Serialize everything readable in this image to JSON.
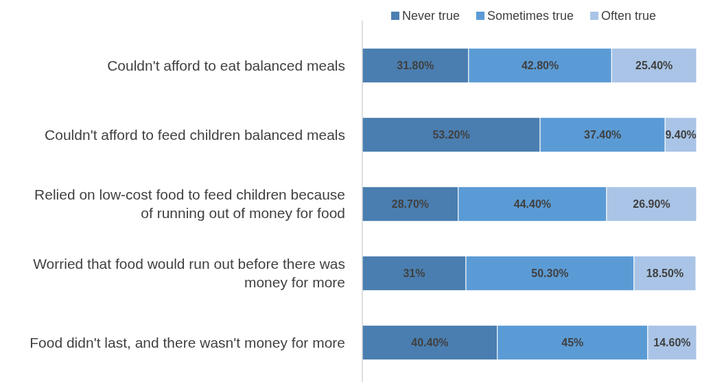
{
  "chart_data": {
    "type": "bar",
    "orientation": "horizontal",
    "stacked": true,
    "legend": "top right",
    "categories": [
      "Couldn't afford to eat balanced meals",
      "Couldn't afford to feed children balanced meals",
      "Relied on low-cost food to feed children because of running out of money for food",
      "Worried that food would run out before there was money for more",
      "Food didn't last, and there wasn't money for more"
    ],
    "series": [
      {
        "name": "Never true",
        "color": "#4a7eb0",
        "values": [
          31.8,
          53.2,
          28.7,
          31,
          40.4
        ],
        "value_labels": [
          "31.80%",
          "53.20%",
          "28.70%",
          "31%",
          "40.40%"
        ]
      },
      {
        "name": "Sometimes true",
        "color": "#5b9bd5",
        "values": [
          42.8,
          37.4,
          44.4,
          50.3,
          45
        ],
        "value_labels": [
          "42.80%",
          "37.40%",
          "44.40%",
          "50.30%",
          "45%"
        ]
      },
      {
        "name": "Often true",
        "color": "#a9c4e6",
        "values": [
          25.4,
          9.4,
          26.9,
          18.5,
          14.6
        ],
        "value_labels": [
          "25.40%",
          "9.40%",
          "26.90%",
          "18.50%",
          "14.60%"
        ]
      }
    ]
  }
}
